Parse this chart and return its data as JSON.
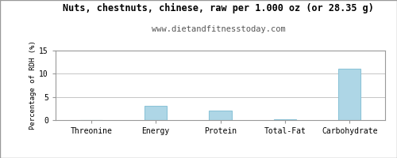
{
  "title": "Nuts, chestnuts, chinese, raw per 1.000 oz (or 28.35 g)",
  "subtitle": "www.dietandfitnesstoday.com",
  "categories": [
    "Threonine",
    "Energy",
    "Protein",
    "Total-Fat",
    "Carbohydrate"
  ],
  "values": [
    0.0,
    3.0,
    2.1,
    0.1,
    11.1
  ],
  "bar_color": "#aed6e6",
  "bar_edge_color": "#8cc4d8",
  "ylabel": "Percentage of RDH (%)",
  "ylim": [
    0,
    15
  ],
  "yticks": [
    0,
    5,
    10,
    15
  ],
  "background_color": "#ffffff",
  "plot_bg_color": "#ffffff",
  "grid_color": "#bbbbbb",
  "title_fontsize": 8.5,
  "subtitle_fontsize": 7.5,
  "ylabel_fontsize": 6.5,
  "tick_fontsize": 7.0,
  "border_color": "#999999"
}
